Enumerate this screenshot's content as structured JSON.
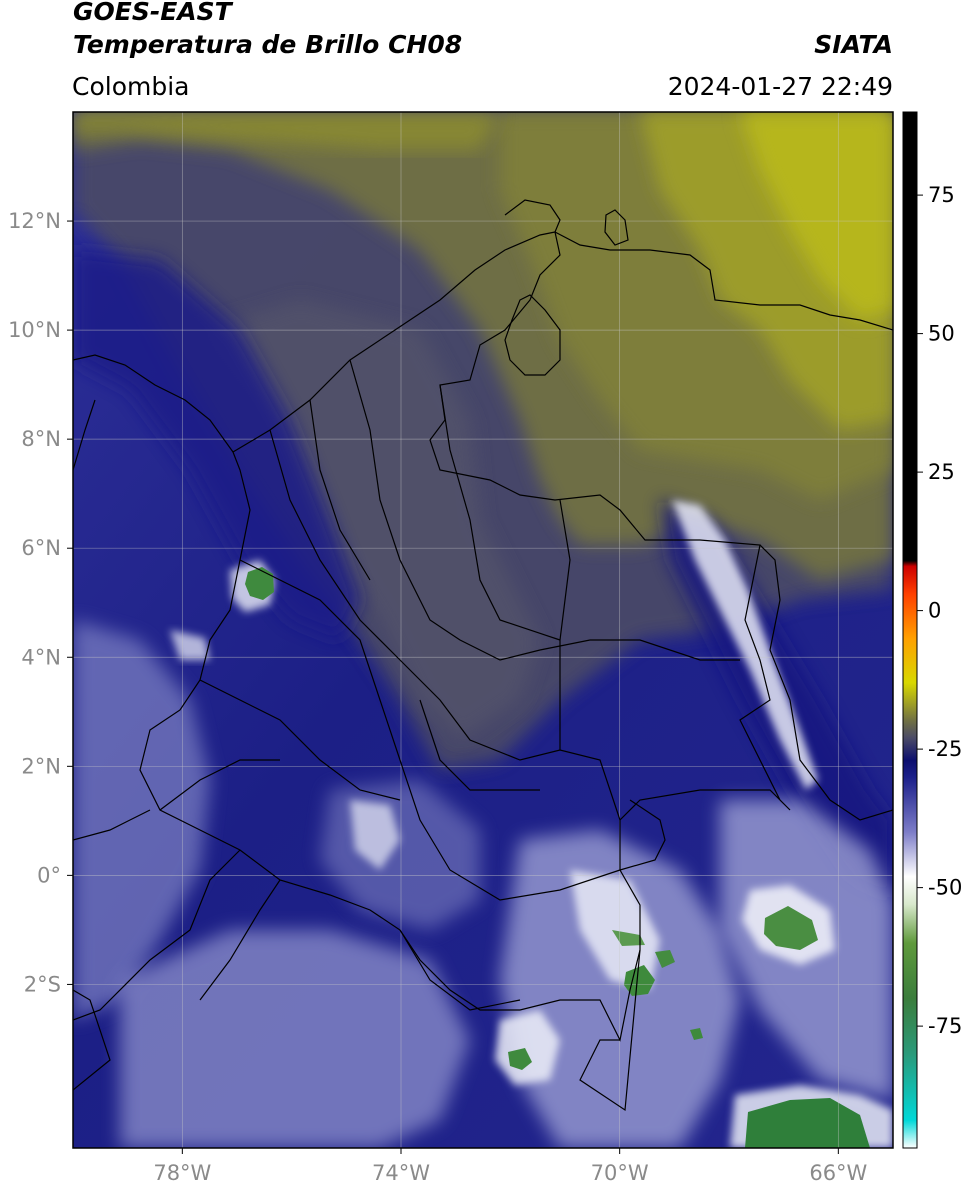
{
  "header": {
    "satellite": "GOES-EAST",
    "product": "Temperatura de Brillo CH08",
    "agency": "SIATA",
    "region": "Colombia",
    "timestamp": "2024-01-27 22:49"
  },
  "map": {
    "extent": {
      "lon_min": -80,
      "lon_max": -65,
      "lat_min": -5,
      "lat_max": 14
    },
    "lat_ticks": [
      {
        "value": 12,
        "label": "12°N"
      },
      {
        "value": 10,
        "label": "10°N"
      },
      {
        "value": 8,
        "label": "8°N"
      },
      {
        "value": 6,
        "label": "6°N"
      },
      {
        "value": 4,
        "label": "4°N"
      },
      {
        "value": 2,
        "label": "2°N"
      },
      {
        "value": 0,
        "label": "0°"
      },
      {
        "value": -2,
        "label": "2°S"
      }
    ],
    "lon_ticks": [
      {
        "value": -78,
        "label": "78°W"
      },
      {
        "value": -74,
        "label": "74°W"
      },
      {
        "value": -70,
        "label": "70°W"
      },
      {
        "value": -66,
        "label": "66°W"
      }
    ]
  },
  "colorbar": {
    "range": [
      -97,
      90
    ],
    "ticks": [
      {
        "value": 75,
        "label": "75"
      },
      {
        "value": 50,
        "label": "50"
      },
      {
        "value": 25,
        "label": "25"
      },
      {
        "value": 0,
        "label": "0"
      },
      {
        "value": -25,
        "label": "-25"
      },
      {
        "value": -50,
        "label": "-50"
      },
      {
        "value": -75,
        "label": "-75"
      }
    ],
    "stops": [
      {
        "value": -97,
        "color": "#ffffff"
      },
      {
        "value": -92,
        "color": "#00d8d8"
      },
      {
        "value": -80,
        "color": "#2a9a7a"
      },
      {
        "value": -70,
        "color": "#3b7d3c"
      },
      {
        "value": -60,
        "color": "#5f9a3c"
      },
      {
        "value": -53,
        "color": "#d8e8cc"
      },
      {
        "value": -48,
        "color": "#ffffff"
      },
      {
        "value": -40,
        "color": "#7d7dc8"
      },
      {
        "value": -30,
        "color": "#1b1f8a"
      },
      {
        "value": -27,
        "color": "#0c0f6e"
      },
      {
        "value": -23,
        "color": "#4a4a66"
      },
      {
        "value": -20,
        "color": "#6e6e44"
      },
      {
        "value": -13,
        "color": "#d8d800"
      },
      {
        "value": -5,
        "color": "#ffa000"
      },
      {
        "value": 3,
        "color": "#ff4000"
      },
      {
        "value": 8,
        "color": "#cc0000"
      },
      {
        "value": 9,
        "color": "#000000"
      },
      {
        "value": 90,
        "color": "#000000"
      }
    ]
  },
  "colors": {
    "cold_tops": "#3b7d3c",
    "very_cold": "#ffffff",
    "moist_blue": "#1b1f8a",
    "dry_olive": "#8c8c2c",
    "border_line": "#000000",
    "grid_line": "#c8c8c8"
  }
}
